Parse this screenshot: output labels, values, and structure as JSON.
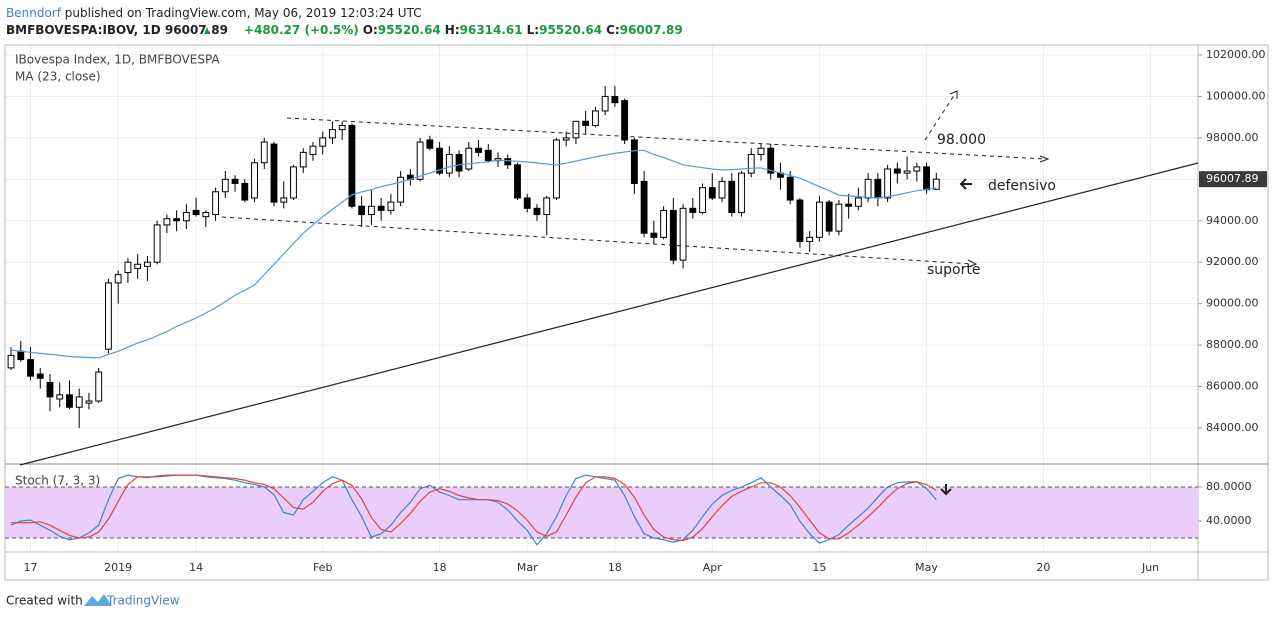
{
  "header": {
    "author": "Benndorf",
    "published": "published on TradingView.com, May 06, 2019 12:03:24 UTC",
    "symbol": "BMFBOVESPA:IBOV, 1D",
    "price": "96007.89",
    "change": "+480.27 (+0.5%)",
    "ohlc": [
      {
        "label": "O:",
        "value": "95520.64"
      },
      {
        "label": "H:",
        "value": "96314.61"
      },
      {
        "label": "L:",
        "value": "95520.64"
      },
      {
        "label": "C:",
        "value": "96007.89"
      }
    ]
  },
  "chart_data": {
    "type": "candlestick",
    "title": "IBovespa Index, 1D, BMFBOVESPA",
    "grid": true,
    "xlim": [
      -0.62,
      121.87
    ],
    "xticks": [
      {
        "value": 2,
        "label": "17"
      },
      {
        "value": 11,
        "label": "2019"
      },
      {
        "value": 19,
        "label": "14"
      },
      {
        "value": 32,
        "label": "Feb"
      },
      {
        "value": 44,
        "label": "18"
      },
      {
        "value": 53,
        "label": "Mar"
      },
      {
        "value": 62,
        "label": "18"
      },
      {
        "value": 72,
        "label": "Apr"
      },
      {
        "value": 83,
        "label": "15"
      },
      {
        "value": 94,
        "label": "May"
      },
      {
        "value": 106,
        "label": "20"
      },
      {
        "value": 117,
        "label": "Jun"
      }
    ],
    "ylim": [
      82309,
      102483
    ],
    "yticks": [
      {
        "value": 84000,
        "label": "84000.00"
      },
      {
        "value": 86000,
        "label": "86000.00"
      },
      {
        "value": 88000,
        "label": "88000.00"
      },
      {
        "value": 90000,
        "label": "90000.00"
      },
      {
        "value": 92000,
        "label": "92000.00"
      },
      {
        "value": 94000,
        "label": "94000.00"
      },
      {
        "value": 96000,
        "label": "96000.00"
      },
      {
        "value": 98000,
        "label": "98000.00"
      },
      {
        "value": 100000,
        "label": "100000.00"
      },
      {
        "value": 102000,
        "label": "102000.00"
      }
    ],
    "last_price": {
      "value": 96007.89,
      "label": "96007.89"
    },
    "up_color": "#ffffff",
    "down_color": "#000000",
    "candles": [
      [
        86900,
        87900,
        86800,
        87500
      ],
      [
        87700,
        88200,
        87200,
        87300
      ],
      [
        87300,
        87900,
        86300,
        86500
      ],
      [
        86600,
        86900,
        85900,
        86400
      ],
      [
        86200,
        86600,
        84800,
        85500
      ],
      [
        85400,
        86200,
        85000,
        85600
      ],
      [
        85600,
        86300,
        84900,
        85000
      ],
      [
        85000,
        85900,
        84000,
        85500
      ],
      [
        85200,
        85700,
        84900,
        85300
      ],
      [
        85300,
        86900,
        85200,
        86700
      ],
      [
        87800,
        91200,
        87600,
        91000
      ],
      [
        91000,
        91600,
        90000,
        91400
      ],
      [
        91500,
        92200,
        91000,
        92000
      ],
      [
        91700,
        92400,
        91200,
        91900
      ],
      [
        91800,
        92300,
        91100,
        92000
      ],
      [
        92000,
        94000,
        91900,
        93800
      ],
      [
        93800,
        94300,
        93400,
        94100
      ],
      [
        94100,
        94500,
        93500,
        94000
      ],
      [
        94000,
        94800,
        93600,
        94400
      ],
      [
        94500,
        95100,
        94200,
        94300
      ],
      [
        94200,
        94500,
        93700,
        94400
      ],
      [
        94300,
        95600,
        94000,
        95400
      ],
      [
        95400,
        96400,
        95100,
        96000
      ],
      [
        96000,
        96200,
        95400,
        95800
      ],
      [
        95800,
        96000,
        94900,
        95000
      ],
      [
        95100,
        97000,
        94900,
        96800
      ],
      [
        96800,
        98000,
        96500,
        97800
      ],
      [
        97700,
        97800,
        94700,
        94900
      ],
      [
        94900,
        95900,
        94600,
        95100
      ],
      [
        95100,
        96700,
        95000,
        96600
      ],
      [
        96600,
        97500,
        96300,
        97300
      ],
      [
        97200,
        97800,
        96900,
        97600
      ],
      [
        97600,
        98300,
        97200,
        98000
      ],
      [
        98000,
        98800,
        97700,
        98400
      ],
      [
        98400,
        98800,
        97900,
        98600
      ],
      [
        98600,
        98700,
        94600,
        94700
      ],
      [
        94700,
        95200,
        93700,
        94300
      ],
      [
        94300,
        95500,
        93800,
        94700
      ],
      [
        94700,
        95100,
        94000,
        94500
      ],
      [
        94500,
        95300,
        94300,
        94900
      ],
      [
        94900,
        96400,
        94700,
        96100
      ],
      [
        96200,
        96500,
        95700,
        96000
      ],
      [
        96000,
        98000,
        95900,
        97800
      ],
      [
        97900,
        98100,
        97400,
        97500
      ],
      [
        97500,
        97800,
        96200,
        96300
      ],
      [
        96300,
        97600,
        96100,
        97200
      ],
      [
        97200,
        97400,
        96100,
        96400
      ],
      [
        96500,
        97800,
        96400,
        97500
      ],
      [
        97500,
        97900,
        97100,
        97300
      ],
      [
        97400,
        97700,
        96800,
        96900
      ],
      [
        96900,
        97300,
        96600,
        97000
      ],
      [
        97000,
        97200,
        96500,
        96700
      ],
      [
        96700,
        96800,
        95000,
        95100
      ],
      [
        95100,
        95300,
        94400,
        94600
      ],
      [
        94600,
        94800,
        94000,
        94300
      ],
      [
        94300,
        95200,
        93300,
        95100
      ],
      [
        95100,
        98000,
        95000,
        97900
      ],
      [
        97900,
        98300,
        97600,
        98000
      ],
      [
        98000,
        98800,
        97700,
        98800
      ],
      [
        98800,
        99300,
        98200,
        98600
      ],
      [
        98600,
        99500,
        98500,
        99300
      ],
      [
        99300,
        100500,
        99100,
        100000
      ],
      [
        100000,
        100500,
        99500,
        99700
      ],
      [
        99800,
        99900,
        97700,
        97900
      ],
      [
        97900,
        98000,
        95300,
        95800
      ],
      [
        95900,
        96400,
        93200,
        93400
      ],
      [
        93400,
        94000,
        92900,
        93200
      ],
      [
        93200,
        94700,
        93100,
        94500
      ],
      [
        94500,
        95100,
        91900,
        92100
      ],
      [
        92100,
        94800,
        91700,
        94600
      ],
      [
        94600,
        95100,
        94100,
        94400
      ],
      [
        94400,
        95800,
        94300,
        95600
      ],
      [
        95600,
        96300,
        95000,
        95100
      ],
      [
        95100,
        96100,
        94900,
        95900
      ],
      [
        95900,
        96300,
        94200,
        94400
      ],
      [
        94400,
        96400,
        94200,
        96300
      ],
      [
        96300,
        97500,
        96100,
        97200
      ],
      [
        97200,
        97700,
        96900,
        97500
      ],
      [
        97500,
        97700,
        96000,
        96300
      ],
      [
        96300,
        96800,
        95500,
        96100
      ],
      [
        96100,
        96400,
        94800,
        95000
      ],
      [
        95000,
        95100,
        92700,
        93000
      ],
      [
        93000,
        93500,
        92500,
        93200
      ],
      [
        93200,
        95200,
        93000,
        94900
      ],
      [
        94900,
        95000,
        93300,
        93500
      ],
      [
        93500,
        95000,
        93300,
        94800
      ],
      [
        94800,
        95300,
        94100,
        94700
      ],
      [
        94700,
        95600,
        94500,
        95100
      ],
      [
        95100,
        96300,
        94900,
        96000
      ],
      [
        96000,
        96300,
        94700,
        95100
      ],
      [
        95100,
        96700,
        94900,
        96500
      ],
      [
        96500,
        96800,
        95800,
        96300
      ],
      [
        96300,
        97100,
        96000,
        96400
      ],
      [
        96400,
        96800,
        95900,
        96600
      ],
      [
        96600,
        96800,
        95300,
        95500
      ],
      [
        95520.64,
        96314.61,
        95520.64,
        96007.89
      ]
    ],
    "ma": {
      "name": "MA (23, close)",
      "color": "#5b9bd5",
      "values": [
        87760,
        87700,
        87650,
        87600,
        87550,
        87500,
        87450,
        87420,
        87400,
        87380,
        87550,
        87700,
        87900,
        88100,
        88250,
        88450,
        88650,
        88900,
        89100,
        89300,
        89550,
        89800,
        90100,
        90400,
        90650,
        90900,
        91400,
        91900,
        92400,
        92900,
        93400,
        93800,
        94200,
        94550,
        94900,
        95250,
        95400,
        95500,
        95650,
        95750,
        95870,
        96000,
        96150,
        96300,
        96450,
        96600,
        96700,
        96750,
        96800,
        96850,
        96930,
        96900,
        96870,
        96840,
        96790,
        96740,
        96690,
        96780,
        96880,
        96980,
        97080,
        97170,
        97250,
        97320,
        97380,
        97400,
        97200,
        97050,
        96880,
        96700,
        96630,
        96560,
        96500,
        96450,
        96470,
        96500,
        96530,
        96550,
        96430,
        96300,
        96180,
        96060,
        95850,
        95650,
        95450,
        95240,
        95200,
        95170,
        95130,
        95100,
        95150,
        95250,
        95350,
        95450,
        95520,
        95580
      ]
    },
    "annotations": {
      "target": "98.000",
      "defensive": "defensivo",
      "support": "suporte"
    },
    "stoch": {
      "title": "Stoch (7, 3, 3)",
      "ylim": [
        3.5,
        105.9
      ],
      "yticks": [
        {
          "value": 40,
          "label": "40.0000"
        },
        {
          "value": 80,
          "label": "80.0000"
        }
      ],
      "bands": [
        20,
        80
      ],
      "band_color": "#ebcdfb",
      "series": [
        {
          "color": "#3d85c6",
          "values": [
            35,
            40,
            41,
            35,
            29,
            22,
            18,
            20,
            26,
            35,
            65,
            90,
            94,
            92,
            91,
            93,
            94,
            94,
            94,
            94,
            92,
            91,
            90,
            88,
            85,
            83,
            80,
            71,
            50,
            47,
            65,
            75,
            85,
            92,
            88,
            65,
            45,
            21,
            25,
            35,
            50,
            62,
            78,
            82,
            74,
            70,
            65,
            65,
            65,
            65,
            62,
            53,
            40,
            29,
            12,
            25,
            45,
            70,
            90,
            94,
            92,
            90,
            88,
            70,
            45,
            25,
            20,
            18,
            15,
            18,
            29,
            45,
            60,
            70,
            76,
            80,
            85,
            91,
            80,
            70,
            59,
            40,
            25,
            14,
            18,
            24,
            35,
            45,
            55,
            68,
            80,
            85,
            86,
            86,
            78,
            65
          ]
        },
        {
          "color": "#e0443c",
          "values": [
            38,
            38,
            38,
            39,
            35,
            29,
            23,
            20,
            21,
            27,
            42,
            63,
            83,
            92,
            92,
            92,
            93,
            94,
            94,
            94,
            93,
            92,
            91,
            90,
            88,
            85,
            83,
            78,
            67,
            56,
            54,
            62,
            75,
            84,
            88,
            82,
            66,
            44,
            30,
            27,
            37,
            49,
            63,
            74,
            78,
            75,
            70,
            67,
            65,
            65,
            64,
            60,
            52,
            41,
            27,
            22,
            27,
            47,
            68,
            85,
            92,
            92,
            90,
            83,
            68,
            47,
            30,
            21,
            18,
            17,
            21,
            31,
            45,
            58,
            69,
            75,
            80,
            85,
            85,
            80,
            70,
            56,
            41,
            26,
            19,
            19,
            26,
            35,
            45,
            56,
            68,
            78,
            84,
            86,
            83,
            76
          ]
        }
      ]
    }
  },
  "footer": {
    "created": "Created with",
    "brand": "TradingView"
  }
}
